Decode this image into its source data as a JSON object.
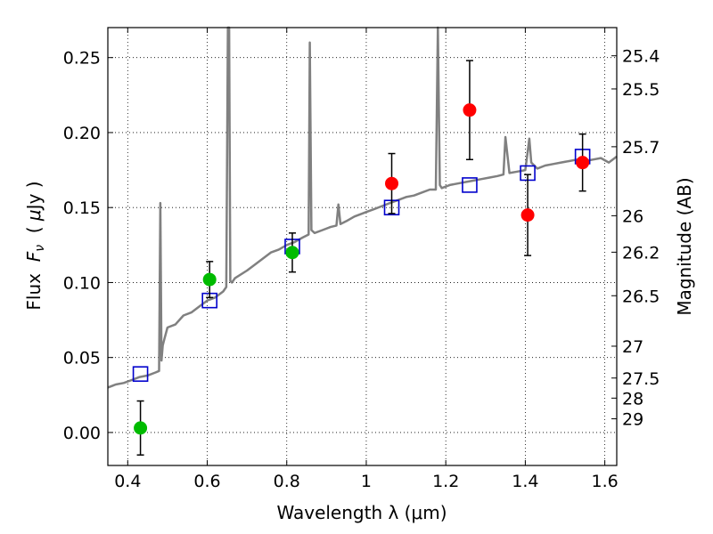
{
  "chart_data": {
    "type": "scatter",
    "xlabel": "Wavelength  λ (μm)",
    "ylabel_parts": [
      "Flux  ",
      "F",
      "ν",
      "  ( ",
      "μ",
      "Jy )"
    ],
    "ylabel_right": "Magnitude (AB)",
    "xlim": [
      0.35,
      1.63
    ],
    "ylim": [
      -0.022,
      0.27
    ],
    "grid": true,
    "x_ticks": [
      0.4,
      0.6,
      0.8,
      1.0,
      1.2,
      1.4,
      1.6
    ],
    "x_tick_labels": [
      "0.4",
      "0.6",
      "0.8",
      "1",
      "1.2",
      "1.4",
      "1.6"
    ],
    "y_ticks": [
      0.0,
      0.05,
      0.1,
      0.15,
      0.2,
      0.25
    ],
    "y_tick_labels": [
      "0.00",
      "0.05",
      "0.10",
      "0.15",
      "0.20",
      "0.25"
    ],
    "mag_ticks": [
      {
        "mag": 25.4,
        "label": "25.4"
      },
      {
        "mag": 25.5,
        "label": "25.5"
      },
      {
        "mag": 25.7,
        "label": "25.7"
      },
      {
        "mag": 26,
        "label": "26"
      },
      {
        "mag": 26.2,
        "label": "26.2"
      },
      {
        "mag": 26.5,
        "label": "26.5"
      },
      {
        "mag": 27,
        "label": "27"
      },
      {
        "mag": 27.5,
        "label": "27.5"
      },
      {
        "mag": 28,
        "label": "28"
      },
      {
        "mag": 29,
        "label": "29"
      }
    ],
    "series": [
      {
        "name": "model spectrum",
        "kind": "line",
        "color": "#808080",
        "x": [
          0.35,
          0.37,
          0.39,
          0.41,
          0.43,
          0.45,
          0.47,
          0.479,
          0.482,
          0.485,
          0.488,
          0.492,
          0.5,
          0.52,
          0.54,
          0.56,
          0.58,
          0.6,
          0.62,
          0.64,
          0.648,
          0.652,
          0.655,
          0.658,
          0.662,
          0.67,
          0.7,
          0.72,
          0.74,
          0.76,
          0.78,
          0.8,
          0.82,
          0.84,
          0.855,
          0.858,
          0.862,
          0.87,
          0.89,
          0.91,
          0.925,
          0.93,
          0.935,
          0.95,
          0.97,
          0.99,
          1.0,
          1.02,
          1.04,
          1.06,
          1.08,
          1.1,
          1.12,
          1.14,
          1.16,
          1.175,
          1.18,
          1.185,
          1.19,
          1.21,
          1.23,
          1.25,
          1.27,
          1.29,
          1.31,
          1.33,
          1.345,
          1.35,
          1.36,
          1.38,
          1.4,
          1.405,
          1.41,
          1.415,
          1.43,
          1.45,
          1.47,
          1.49,
          1.51,
          1.53,
          1.55,
          1.57,
          1.59,
          1.61,
          1.63
        ],
        "y": [
          0.03,
          0.032,
          0.033,
          0.035,
          0.037,
          0.038,
          0.04,
          0.041,
          0.153,
          0.048,
          0.058,
          0.062,
          0.07,
          0.072,
          0.078,
          0.08,
          0.084,
          0.088,
          0.09,
          0.094,
          0.097,
          0.27,
          0.27,
          0.101,
          0.1,
          0.103,
          0.108,
          0.112,
          0.116,
          0.12,
          0.122,
          0.125,
          0.127,
          0.13,
          0.132,
          0.26,
          0.135,
          0.133,
          0.135,
          0.137,
          0.138,
          0.152,
          0.139,
          0.141,
          0.144,
          0.146,
          0.147,
          0.149,
          0.151,
          0.153,
          0.155,
          0.157,
          0.158,
          0.16,
          0.162,
          0.162,
          0.27,
          0.165,
          0.163,
          0.165,
          0.166,
          0.167,
          0.168,
          0.169,
          0.17,
          0.171,
          0.172,
          0.197,
          0.173,
          0.174,
          0.175,
          0.185,
          0.196,
          0.18,
          0.176,
          0.178,
          0.179,
          0.18,
          0.181,
          0.182,
          0.181,
          0.182,
          0.183,
          0.18,
          0.184
        ]
      },
      {
        "name": "model photometry",
        "kind": "open-square",
        "color": "#0000cc",
        "x": [
          0.432,
          0.606,
          0.814,
          1.064,
          1.26,
          1.406,
          1.544
        ],
        "y": [
          0.039,
          0.088,
          0.124,
          0.15,
          0.165,
          0.173,
          0.184
        ]
      },
      {
        "name": "observed (green)",
        "kind": "filled-circle",
        "color": "#00bb00",
        "x": [
          0.432,
          0.606,
          0.814
        ],
        "y": [
          0.003,
          0.102,
          0.12
        ],
        "yerr": [
          0.018,
          0.012,
          0.013
        ]
      },
      {
        "name": "observed (red)",
        "kind": "filled-circle",
        "color": "#ff0000",
        "x": [
          1.064,
          1.26,
          1.406,
          1.544
        ],
        "y": [
          0.166,
          0.215,
          0.145,
          0.18
        ],
        "yerr": [
          0.02,
          0.033,
          0.027,
          0.019
        ]
      }
    ]
  }
}
